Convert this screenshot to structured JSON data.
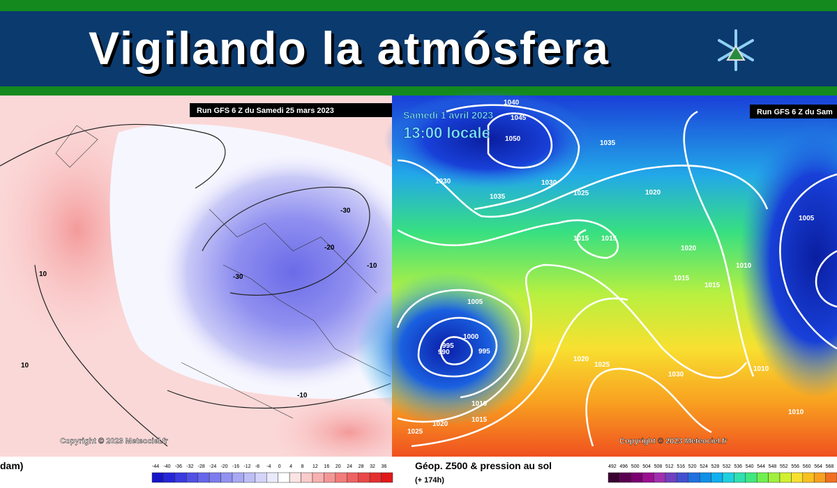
{
  "header": {
    "title": "Vigilando la atmósfera"
  },
  "left_map": {
    "run_label": "Run GFS 6 Z du Samedi 25 mars 2023",
    "contour_labels": [
      "-30",
      "-20",
      "-10",
      "-30",
      "10",
      "10",
      "-10"
    ],
    "copyright": "Copyright © 2023 Meteociel.fr",
    "legend_title": "dam)",
    "scale": [
      -44,
      -40,
      -36,
      -32,
      -28,
      -24,
      -20,
      -16,
      -12,
      -8,
      -4,
      0,
      4,
      8,
      12,
      16,
      20,
      24,
      28,
      32,
      36
    ]
  },
  "right_map": {
    "date_label": "Samedi 1 avril 2023",
    "time_label": "13:00 locale",
    "run_label": "Run GFS 6 Z du Sam",
    "isobar_labels": [
      "1040",
      "1045",
      "1050",
      "1035",
      "1030",
      "1035",
      "1030",
      "1025",
      "1020",
      "1015",
      "1015",
      "1020",
      "1015",
      "1015",
      "1010",
      "1005",
      "1005",
      "1000",
      "995",
      "995",
      "990",
      "1010",
      "1015",
      "1020",
      "1025",
      "1020",
      "1025",
      "1030",
      "1010",
      "1010"
    ],
    "copyright": "Copyright © 2023 Meteociel.fr",
    "legend_title": "Géop. Z500 & pression au sol",
    "legend_subtitle": "(+ 174h)",
    "scale": [
      492,
      496,
      500,
      504,
      508,
      512,
      516,
      520,
      524,
      528,
      532,
      536,
      540,
      544,
      548,
      552,
      556,
      560,
      564,
      568
    ]
  }
}
